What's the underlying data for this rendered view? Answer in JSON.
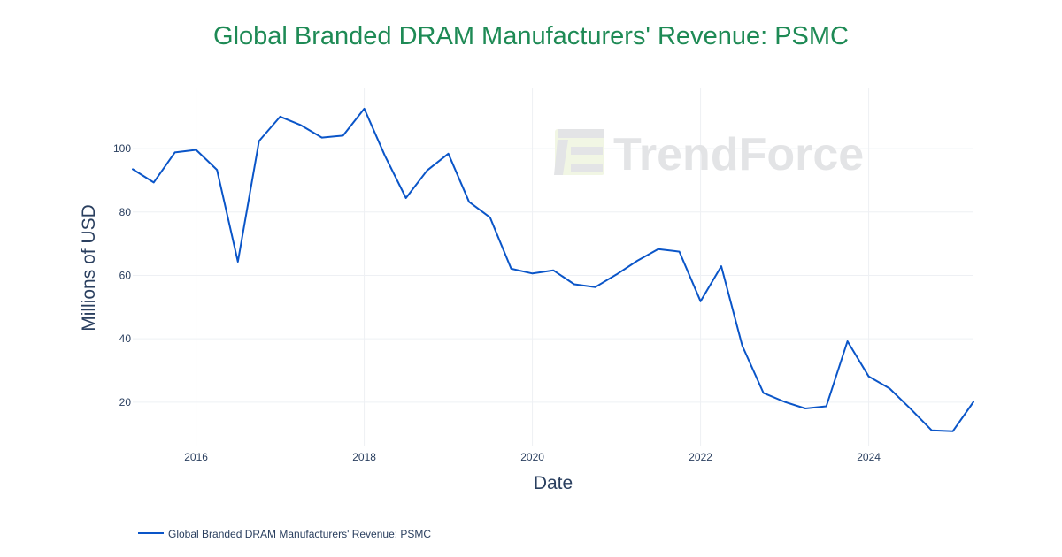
{
  "colors": {
    "title": "#1e8a55",
    "series": "#0a55c8",
    "grid": "#eef0f4",
    "axis_text": "#2a3f5f",
    "watermark": "#e3e4e6",
    "watermark_accent": "#f1f6e4"
  },
  "watermark": {
    "text": "TrendForce",
    "icon": "trendforce-logo-icon"
  },
  "chart_data": {
    "type": "line",
    "title": "Global Branded DRAM Manufacturers' Revenue: PSMC",
    "xlabel": "Date",
    "ylabel": "Millions of USD",
    "xlim": [
      "2015-04-01",
      "2025-04-01"
    ],
    "ylim": [
      6,
      119
    ],
    "x_ticks": [
      "2016",
      "2018",
      "2020",
      "2022",
      "2024"
    ],
    "y_ticks": [
      20,
      40,
      60,
      80,
      100
    ],
    "grid": true,
    "legend_position": "bottom-left",
    "series": [
      {
        "name": "Global Branded DRAM Manufacturers' Revenue: PSMC",
        "x": [
          "2015-04-01",
          "2015-07-01",
          "2015-10-01",
          "2016-01-01",
          "2016-04-01",
          "2016-07-01",
          "2016-10-01",
          "2017-01-01",
          "2017-04-01",
          "2017-07-01",
          "2017-10-01",
          "2018-01-01",
          "2018-04-01",
          "2018-07-01",
          "2018-10-01",
          "2019-01-01",
          "2019-04-01",
          "2019-07-01",
          "2019-10-01",
          "2020-01-01",
          "2020-04-01",
          "2020-07-01",
          "2020-10-01",
          "2021-01-01",
          "2021-04-01",
          "2021-07-01",
          "2021-10-01",
          "2022-01-01",
          "2022-04-01",
          "2022-07-01",
          "2022-10-01",
          "2023-01-01",
          "2023-04-01",
          "2023-07-01",
          "2023-10-01",
          "2024-01-01",
          "2024-04-01",
          "2024-07-01",
          "2024-10-01",
          "2025-01-01",
          "2025-04-01"
        ],
        "y": [
          93.5,
          89.3,
          98.8,
          99.6,
          93.3,
          64.3,
          102.4,
          110.1,
          107.4,
          103.5,
          104.1,
          112.6,
          97.7,
          84.4,
          93.1,
          98.4,
          83.2,
          78.3,
          62.1,
          60.6,
          61.6,
          57.2,
          56.3,
          60.3,
          64.6,
          68.3,
          67.5,
          51.8,
          62.9,
          37.8,
          22.9,
          20.1,
          18.0,
          18.7,
          39.2,
          28.1,
          24.3,
          17.9,
          11.1,
          10.8,
          20.1
        ]
      }
    ]
  }
}
